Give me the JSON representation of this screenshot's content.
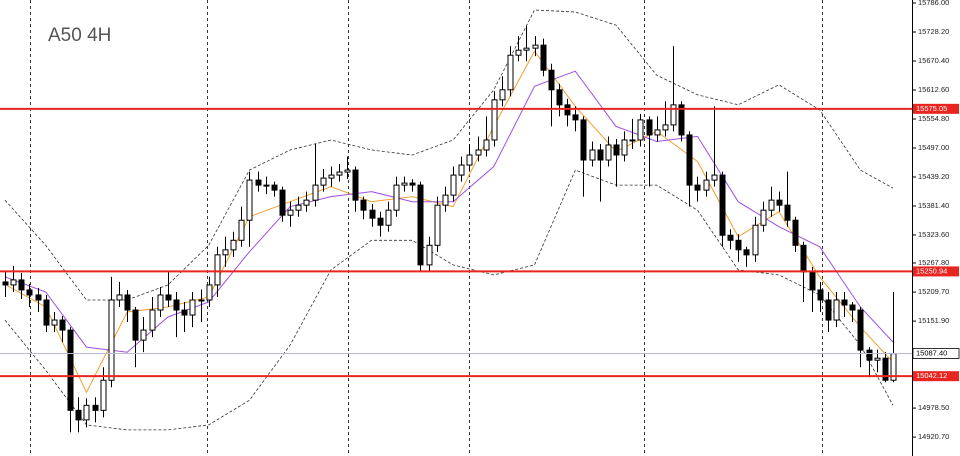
{
  "chart_data": {
    "type": "candlestick",
    "title": "A50 4H",
    "ylim": [
      14883,
      15792
    ],
    "yticks": [
      {
        "value": 15786.0,
        "label": "15786.00"
      },
      {
        "value": 15728.2,
        "label": "15728.20"
      },
      {
        "value": 15670.4,
        "label": "15670.40"
      },
      {
        "value": 15612.6,
        "label": "15612.60"
      },
      {
        "value": 15554.8,
        "label": "15554.80"
      },
      {
        "value": 15497.0,
        "label": "15497.00"
      },
      {
        "value": 15439.2,
        "label": "15439.20"
      },
      {
        "value": 15381.4,
        "label": "15381.40"
      },
      {
        "value": 15323.6,
        "label": "15323.60"
      },
      {
        "value": 15267.8,
        "label": "15267.80"
      },
      {
        "value": 15209.7,
        "label": "15209.70"
      },
      {
        "value": 15151.9,
        "label": "15151.90"
      },
      {
        "value": 14978.5,
        "label": "14978.50"
      },
      {
        "value": 14920.7,
        "label": "14920.70"
      }
    ],
    "up_color": "#ffffff",
    "down_color": "#000000",
    "open": [
      15230,
      15224,
      15234,
      15214,
      15204,
      15194,
      15144,
      15154,
      15134,
      14974,
      14955,
      14984,
      14974,
      15034,
      15194,
      15204,
      15174,
      15114,
      15134,
      15174,
      15204,
      15194,
      15174,
      15164,
      15194,
      15194,
      15224,
      15284,
      15294,
      15313,
      15353,
      15433,
      15423,
      15423,
      15413,
      15363,
      15373,
      15383,
      15393,
      15423,
      15437,
      15443,
      15449,
      15453,
      15393,
      15373,
      15357,
      15343,
      15373,
      15423,
      15427,
      15423,
      15264,
      15303,
      15383,
      15403,
      15443,
      15463,
      15483,
      15493,
      15513,
      15593,
      15613,
      15682,
      15692,
      15696,
      15702,
      15652,
      15613,
      15583,
      15563,
      15553,
      15473,
      15493,
      15473,
      15503,
      15483,
      15513,
      15513,
      15553,
      15523,
      15533,
      15543,
      15583,
      15523,
      15423,
      15413,
      15433,
      15443,
      15323,
      15313,
      15294,
      15284,
      15343,
      15373,
      15393,
      15383,
      15353,
      15303,
      15250,
      15214,
      15194,
      15154,
      15194,
      15184,
      15174,
      15094,
      15074,
      15078,
      15034
    ],
    "high": [
      15250,
      15262,
      15248,
      15226,
      15218,
      15204,
      15170,
      15162,
      15140,
      15000,
      14998,
      15000,
      15060,
      15240,
      15230,
      15214,
      15180,
      15160,
      15200,
      15220,
      15250,
      15210,
      15190,
      15210,
      15215,
      15240,
      15300,
      15320,
      15330,
      15380,
      15450,
      15450,
      15440,
      15430,
      15420,
      15390,
      15400,
      15410,
      15505,
      15455,
      15460,
      15465,
      15480,
      15460,
      15400,
      15385,
      15370,
      15390,
      15440,
      15440,
      15435,
      15430,
      15320,
      15400,
      15420,
      15460,
      15480,
      15505,
      15520,
      15560,
      15610,
      15640,
      15700,
      15720,
      15740,
      15720,
      15715,
      15665,
      15625,
      15595,
      15580,
      15560,
      15510,
      15505,
      15520,
      15515,
      15530,
      15555,
      15565,
      15560,
      15560,
      15590,
      15700,
      15590,
      15530,
      15440,
      15450,
      15580,
      15450,
      15335,
      15325,
      15300,
      15360,
      15390,
      15420,
      15410,
      15450,
      15360,
      15310,
      15260,
      15230,
      15210,
      15210,
      15210,
      15190,
      15180,
      15100,
      15095,
      15090,
      15210
    ],
    "low": [
      15200,
      15210,
      15196,
      15180,
      15170,
      15130,
      15130,
      15110,
      14930,
      14930,
      14940,
      14950,
      14960,
      15020,
      15180,
      15150,
      15060,
      15090,
      15120,
      15160,
      15180,
      15120,
      15130,
      15140,
      15150,
      15180,
      15200,
      15260,
      15280,
      15300,
      15300,
      15410,
      15405,
      15400,
      15350,
      15340,
      15360,
      15370,
      15380,
      15410,
      15420,
      15430,
      15435,
      15370,
      15355,
      15340,
      15320,
      15330,
      15360,
      15410,
      15410,
      15250,
      15250,
      15290,
      15370,
      15390,
      15430,
      15450,
      15470,
      15480,
      15500,
      15580,
      15600,
      15670,
      15670,
      15680,
      15640,
      15540,
      15560,
      15540,
      15530,
      15400,
      15460,
      15390,
      15460,
      15420,
      15470,
      15495,
      15500,
      15420,
      15510,
      15520,
      15530,
      15510,
      15380,
      15390,
      15400,
      15420,
      15300,
      15295,
      15270,
      15260,
      15270,
      15330,
      15360,
      15370,
      15340,
      15290,
      15190,
      15170,
      15170,
      15130,
      15140,
      15160,
      15150,
      15060,
      15040,
      15050,
      15030,
      15030
    ],
    "close": [
      15224,
      15234,
      15214,
      15204,
      15194,
      15144,
      15154,
      15134,
      14974,
      14955,
      14984,
      14974,
      15034,
      15194,
      15204,
      15174,
      15114,
      15134,
      15174,
      15204,
      15194,
      15174,
      15164,
      15194,
      15194,
      15224,
      15284,
      15294,
      15313,
      15353,
      15433,
      15423,
      15423,
      15413,
      15363,
      15373,
      15383,
      15393,
      15423,
      15437,
      15443,
      15449,
      15453,
      15393,
      15373,
      15357,
      15343,
      15373,
      15423,
      15427,
      15423,
      15264,
      15303,
      15383,
      15403,
      15443,
      15463,
      15483,
      15493,
      15513,
      15593,
      15613,
      15682,
      15692,
      15696,
      15702,
      15652,
      15613,
      15583,
      15563,
      15553,
      15473,
      15493,
      15473,
      15503,
      15483,
      15513,
      15513,
      15553,
      15523,
      15533,
      15543,
      15583,
      15523,
      15423,
      15413,
      15433,
      15443,
      15323,
      15313,
      15294,
      15284,
      15343,
      15373,
      15393,
      15383,
      15353,
      15303,
      15250,
      15214,
      15194,
      15154,
      15194,
      15184,
      15174,
      15094,
      15074,
      15078,
      15034,
      15087
    ],
    "overlays": [
      {
        "color": "#f0a030",
        "dash": false,
        "x": [
          0,
          5,
          10,
          15,
          20,
          25,
          30,
          35,
          40,
          45,
          50,
          55,
          60,
          65,
          70,
          75,
          80,
          85,
          90,
          95,
          100,
          105,
          109
        ],
        "values": [
          15225,
          15180,
          15010,
          15170,
          15180,
          15200,
          15360,
          15390,
          15420,
          15390,
          15400,
          15380,
          15540,
          15690,
          15580,
          15490,
          15530,
          15470,
          15320,
          15370,
          15240,
          15140,
          15070
        ]
      },
      {
        "color": "#a050e0",
        "dash": false,
        "x": [
          0,
          5,
          10,
          15,
          20,
          25,
          30,
          35,
          40,
          45,
          50,
          55,
          60,
          65,
          70,
          75,
          80,
          85,
          90,
          95,
          100,
          105,
          109
        ],
        "values": [
          15240,
          15210,
          15100,
          15090,
          15160,
          15190,
          15290,
          15380,
          15400,
          15410,
          15390,
          15390,
          15460,
          15620,
          15650,
          15540,
          15510,
          15520,
          15390,
          15340,
          15300,
          15180,
          15110
        ]
      },
      {
        "color": "#333333",
        "dash": true,
        "x": [
          0,
          5,
          10,
          15,
          20,
          25,
          30,
          35,
          40,
          45,
          50,
          55,
          60,
          65,
          70,
          75,
          80,
          85,
          90,
          95,
          100,
          105,
          109
        ],
        "values": [
          15393,
          15303,
          15194,
          15194,
          15224,
          15303,
          15453,
          15493,
          15513,
          15493,
          15483,
          15513,
          15613,
          15772,
          15768,
          15742,
          15642,
          15603,
          15583,
          15623,
          15573,
          15453,
          15417
        ]
      },
      {
        "color": "#333333",
        "dash": true,
        "x": [
          0,
          5,
          10,
          15,
          20,
          25,
          30,
          35,
          40,
          45,
          50,
          55,
          60,
          65,
          70,
          75,
          80,
          85,
          90,
          95,
          100,
          105,
          109
        ],
        "values": [
          15154,
          15054,
          14945,
          14935,
          14935,
          14945,
          14994,
          15104,
          15254,
          15313,
          15313,
          15264,
          15244,
          15264,
          15453,
          15423,
          15423,
          15373,
          15254,
          15244,
          15204,
          15104,
          14984
        ]
      }
    ],
    "levels": [
      {
        "value": 15575.05,
        "color": "#e8251f"
      },
      {
        "value": 15250.94,
        "color": "#e8251f"
      },
      {
        "value": 15042.12,
        "color": "#e8251f"
      }
    ],
    "current_price": {
      "value": 15087.4,
      "label": "15087.40",
      "color": "#b8b8d8"
    }
  }
}
